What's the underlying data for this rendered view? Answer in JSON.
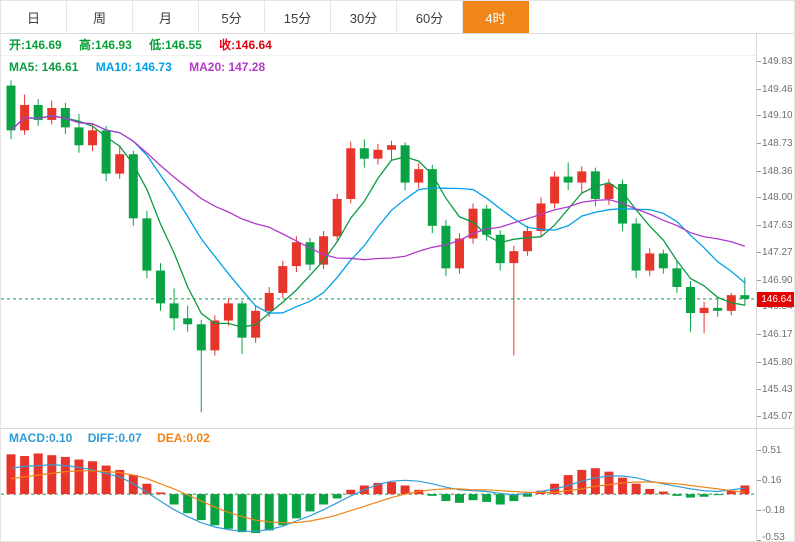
{
  "toolbar": {
    "tabs": [
      {
        "id": "daily",
        "label": "日",
        "active": false
      },
      {
        "id": "weekly",
        "label": "周",
        "active": false
      },
      {
        "id": "monthly",
        "label": "月",
        "active": false
      },
      {
        "id": "5min",
        "label": "5分",
        "active": false
      },
      {
        "id": "15min",
        "label": "15分",
        "active": false
      },
      {
        "id": "30min",
        "label": "30分",
        "active": false
      },
      {
        "id": "60min",
        "label": "60分",
        "active": false
      },
      {
        "id": "4hour",
        "label": "4时",
        "active": true
      }
    ]
  },
  "ohlc": {
    "items": [
      {
        "text": "开:146.69",
        "color": "#089e36"
      },
      {
        "text": "高:146.93",
        "color": "#089e36"
      },
      {
        "text": "低:146.55",
        "color": "#089e36"
      },
      {
        "text": "收:146.64",
        "color": "#e60012"
      }
    ]
  },
  "ma_legend": {
    "items": [
      {
        "text": "MA5: 146.61",
        "color": "#0a9b43"
      },
      {
        "text": "MA10: 146.73",
        "color": "#00a0e9"
      },
      {
        "text": "MA20: 147.28",
        "color": "#b23aca"
      }
    ]
  },
  "macd_legend": {
    "items": [
      {
        "text": "MACD:0.10",
        "color": "#2f9cd6"
      },
      {
        "text": "DIFF:0.07",
        "color": "#2f9cd6"
      },
      {
        "text": "DEA:0.02",
        "color": "#ef8418"
      }
    ]
  },
  "price_axis": {
    "current_label": "146.64"
  },
  "colors": {
    "up": "#e8352b",
    "down": "#0aa344",
    "ma5": "#0a9b43",
    "ma10": "#00a0e9",
    "ma20": "#b23aca",
    "diff": "#2f9cd6",
    "dea": "#ef8418",
    "accent_tab": "#f08519",
    "price_tag_bg": "#e60000",
    "axis_text": "#707070"
  },
  "chart_data": [
    {
      "type": "candlestick",
      "timeframe": "4时",
      "last_bar": {
        "open": 146.69,
        "high": 146.93,
        "low": 146.55,
        "close": 146.64
      },
      "overlays": [
        {
          "name": "MA5",
          "period": 5,
          "value": 146.61
        },
        {
          "name": "MA10",
          "period": 10,
          "value": 146.73
        },
        {
          "name": "MA20",
          "period": 20,
          "value": 147.28
        }
      ],
      "current_price": 146.64,
      "ylim": [
        145.07,
        149.83
      ],
      "y_ticks": [
        149.83,
        149.46,
        149.1,
        148.73,
        148.36,
        148.0,
        147.63,
        147.27,
        146.9,
        146.54,
        146.17,
        145.8,
        145.43,
        145.07
      ],
      "candles": [
        [
          149.5,
          149.57,
          148.78,
          148.9
        ],
        [
          148.9,
          149.38,
          148.84,
          149.24
        ],
        [
          149.24,
          149.32,
          148.96,
          149.04
        ],
        [
          149.04,
          149.3,
          148.98,
          149.2
        ],
        [
          149.2,
          149.27,
          148.85,
          148.94
        ],
        [
          148.94,
          149.12,
          148.6,
          148.7
        ],
        [
          148.7,
          149.0,
          148.62,
          148.9
        ],
        [
          148.9,
          148.96,
          148.22,
          148.32
        ],
        [
          148.32,
          148.68,
          148.25,
          148.58
        ],
        [
          148.58,
          148.63,
          147.62,
          147.72
        ],
        [
          147.72,
          147.82,
          146.92,
          147.02
        ],
        [
          147.02,
          147.12,
          146.48,
          146.58
        ],
        [
          146.58,
          146.78,
          146.22,
          146.38
        ],
        [
          146.38,
          146.55,
          146.2,
          146.3
        ],
        [
          146.3,
          146.36,
          145.12,
          145.95
        ],
        [
          145.95,
          146.42,
          145.88,
          146.35
        ],
        [
          146.35,
          146.65,
          146.28,
          146.58
        ],
        [
          146.58,
          146.62,
          145.9,
          146.12
        ],
        [
          146.12,
          146.55,
          146.05,
          146.48
        ],
        [
          146.48,
          146.8,
          146.4,
          146.72
        ],
        [
          146.72,
          147.15,
          146.65,
          147.08
        ],
        [
          147.08,
          147.48,
          147.0,
          147.4
        ],
        [
          147.4,
          147.46,
          147.02,
          147.1
        ],
        [
          147.1,
          147.55,
          147.04,
          147.48
        ],
        [
          147.48,
          148.05,
          147.42,
          147.98
        ],
        [
          147.98,
          148.75,
          147.92,
          148.66
        ],
        [
          148.66,
          148.78,
          148.4,
          148.52
        ],
        [
          148.52,
          148.72,
          148.44,
          148.64
        ],
        [
          148.64,
          148.76,
          148.5,
          148.7
        ],
        [
          148.7,
          148.74,
          148.1,
          148.2
        ],
        [
          148.2,
          148.46,
          148.12,
          148.38
        ],
        [
          148.38,
          148.44,
          147.52,
          147.62
        ],
        [
          147.62,
          147.7,
          146.95,
          147.05
        ],
        [
          147.05,
          147.52,
          146.98,
          147.45
        ],
        [
          147.45,
          147.92,
          147.38,
          147.85
        ],
        [
          147.85,
          147.9,
          147.42,
          147.5
        ],
        [
          147.5,
          147.56,
          147.02,
          147.12
        ],
        [
          147.12,
          147.35,
          145.88,
          147.28
        ],
        [
          147.28,
          147.62,
          147.22,
          147.55
        ],
        [
          147.55,
          148.0,
          147.48,
          147.92
        ],
        [
          147.92,
          148.35,
          147.85,
          148.28
        ],
        [
          148.28,
          148.47,
          148.1,
          148.2
        ],
        [
          148.2,
          148.42,
          148.05,
          148.35
        ],
        [
          148.35,
          148.4,
          147.88,
          147.98
        ],
        [
          147.98,
          148.25,
          147.9,
          148.18
        ],
        [
          148.18,
          148.24,
          147.55,
          147.65
        ],
        [
          147.65,
          147.72,
          146.92,
          147.02
        ],
        [
          147.02,
          147.32,
          146.95,
          147.25
        ],
        [
          147.25,
          147.3,
          146.98,
          147.05
        ],
        [
          147.05,
          147.15,
          146.72,
          146.8
        ],
        [
          146.8,
          146.88,
          146.2,
          146.45
        ],
        [
          146.45,
          146.6,
          146.18,
          146.52
        ],
        [
          146.52,
          146.65,
          146.4,
          146.48
        ],
        [
          146.48,
          146.72,
          146.42,
          146.69
        ],
        [
          146.69,
          146.93,
          146.55,
          146.64
        ]
      ]
    },
    {
      "type": "bar",
      "name": "MACD(12,26,9)",
      "values": {
        "macd": 0.1,
        "diff": 0.07,
        "dea": 0.02
      },
      "y_ticks": [
        0.51,
        0.16,
        -0.18,
        -0.53
      ],
      "histogram": [
        0.46,
        0.44,
        0.47,
        0.45,
        0.43,
        0.4,
        0.38,
        0.33,
        0.28,
        0.22,
        0.12,
        0.02,
        -0.12,
        -0.22,
        -0.3,
        -0.36,
        -0.4,
        -0.44,
        -0.45,
        -0.42,
        -0.36,
        -0.28,
        -0.2,
        -0.12,
        -0.05,
        0.05,
        0.1,
        0.13,
        0.14,
        0.1,
        0.05,
        -0.02,
        -0.08,
        -0.1,
        -0.07,
        -0.09,
        -0.12,
        -0.08,
        -0.03,
        0.04,
        0.12,
        0.22,
        0.28,
        0.3,
        0.26,
        0.19,
        0.12,
        0.06,
        0.03,
        -0.02,
        -0.04,
        -0.03,
        -0.01,
        0.04,
        0.1
      ],
      "diff": [
        0.3,
        0.32,
        0.33,
        0.34,
        0.33,
        0.31,
        0.28,
        0.24,
        0.2,
        0.12,
        0.02,
        -0.08,
        -0.18,
        -0.26,
        -0.33,
        -0.38,
        -0.41,
        -0.43,
        -0.43,
        -0.41,
        -0.37,
        -0.31,
        -0.25,
        -0.18,
        -0.1,
        -0.02,
        0.05,
        0.11,
        0.15,
        0.16,
        0.15,
        0.12,
        0.08,
        0.05,
        0.04,
        0.03,
        0.01,
        -0.01,
        0.01,
        0.03,
        0.06,
        0.1,
        0.15,
        0.19,
        0.21,
        0.21,
        0.19,
        0.15,
        0.12,
        0.09,
        0.06,
        0.04,
        0.03,
        0.05,
        0.07
      ],
      "dea": [
        0.18,
        0.2,
        0.22,
        0.24,
        0.26,
        0.27,
        0.27,
        0.26,
        0.25,
        0.22,
        0.18,
        0.12,
        0.06,
        -0.01,
        -0.08,
        -0.15,
        -0.21,
        -0.26,
        -0.3,
        -0.32,
        -0.33,
        -0.33,
        -0.31,
        -0.28,
        -0.24,
        -0.19,
        -0.14,
        -0.09,
        -0.04,
        0.0,
        0.03,
        0.05,
        0.06,
        0.06,
        0.05,
        0.05,
        0.04,
        0.03,
        0.02,
        0.02,
        0.02,
        0.04,
        0.06,
        0.09,
        0.11,
        0.13,
        0.14,
        0.14,
        0.13,
        0.12,
        0.1,
        0.08,
        0.06,
        0.04,
        0.02
      ]
    }
  ]
}
